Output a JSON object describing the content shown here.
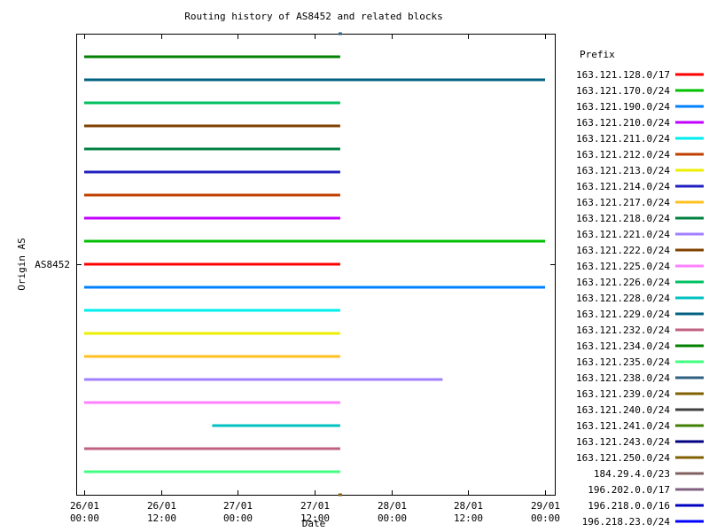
{
  "chart_data": {
    "type": "line",
    "title": "Routing history of AS8452 and related blocks",
    "xlabel": "Date",
    "ylabel": "Origin AS",
    "y_category": "AS8452",
    "legend_title": "Prefix",
    "legend_position": "right",
    "x_range": [
      "2011-01-26T00:00",
      "2011-01-29T00:00"
    ],
    "x_ticks": [
      {
        "at": "2011-01-26T00:00",
        "line1": "26/01",
        "line2": "00:00"
      },
      {
        "at": "2011-01-26T12:00",
        "line1": "26/01",
        "line2": "12:00"
      },
      {
        "at": "2011-01-27T00:00",
        "line1": "27/01",
        "line2": "00:00"
      },
      {
        "at": "2011-01-27T12:00",
        "line1": "27/01",
        "line2": "12:00"
      },
      {
        "at": "2011-01-28T00:00",
        "line1": "28/01",
        "line2": "00:00"
      },
      {
        "at": "2011-01-28T12:00",
        "line1": "28/01",
        "line2": "12:00"
      },
      {
        "at": "2011-01-29T00:00",
        "line1": "29/01",
        "line2": "00:00"
      }
    ],
    "grid": false,
    "series": [
      {
        "name": "163.121.128.0/17",
        "color": "#ff0000",
        "row": 0,
        "start": "2011-01-26T00:00",
        "end": "2011-01-27T16:00"
      },
      {
        "name": "163.121.170.0/24",
        "color": "#00c000",
        "row": 1,
        "start": "2011-01-26T00:00",
        "end": "2011-01-29T00:00"
      },
      {
        "name": "163.121.190.0/24",
        "color": "#0080ff",
        "row": -1,
        "start": "2011-01-26T00:00",
        "end": "2011-01-29T00:00"
      },
      {
        "name": "163.121.210.0/24",
        "color": "#c000ff",
        "row": 2,
        "start": "2011-01-26T00:00",
        "end": "2011-01-27T16:00"
      },
      {
        "name": "163.121.211.0/24",
        "color": "#00eeee",
        "row": -2,
        "start": "2011-01-26T00:00",
        "end": "2011-01-27T16:00"
      },
      {
        "name": "163.121.212.0/24",
        "color": "#c04000",
        "row": 3,
        "start": "2011-01-26T00:00",
        "end": "2011-01-27T16:00"
      },
      {
        "name": "163.121.213.0/24",
        "color": "#eeee00",
        "row": -3,
        "start": "2011-01-26T00:00",
        "end": "2011-01-27T16:00"
      },
      {
        "name": "163.121.214.0/24",
        "color": "#2020c0",
        "row": 4,
        "start": "2011-01-26T00:00",
        "end": "2011-01-27T16:00"
      },
      {
        "name": "163.121.217.0/24",
        "color": "#ffc020",
        "row": -4,
        "start": "2011-01-26T00:00",
        "end": "2011-01-27T16:00"
      },
      {
        "name": "163.121.218.0/24",
        "color": "#008040",
        "row": 5,
        "start": "2011-01-26T00:00",
        "end": "2011-01-27T16:00"
      },
      {
        "name": "163.121.221.0/24",
        "color": "#a080ff",
        "row": -5,
        "start": "2011-01-26T00:00",
        "end": "2011-01-28T08:00"
      },
      {
        "name": "163.121.222.0/24",
        "color": "#804000",
        "row": 6,
        "start": "2011-01-26T00:00",
        "end": "2011-01-27T16:00"
      },
      {
        "name": "163.121.225.0/24",
        "color": "#ff80ff",
        "row": -6,
        "start": "2011-01-26T00:00",
        "end": "2011-01-27T16:00"
      },
      {
        "name": "163.121.226.0/24",
        "color": "#00c060",
        "row": 7,
        "start": "2011-01-26T00:00",
        "end": "2011-01-27T16:00"
      },
      {
        "name": "163.121.228.0/24",
        "color": "#00c0c0",
        "row": -7,
        "start": "2011-01-26T20:00",
        "end": "2011-01-27T16:00"
      },
      {
        "name": "163.121.229.0/24",
        "color": "#006080",
        "row": 8,
        "start": "2011-01-26T00:00",
        "end": "2011-01-29T00:00"
      },
      {
        "name": "163.121.232.0/24",
        "color": "#c06080",
        "row": -8,
        "start": "2011-01-26T00:00",
        "end": "2011-01-27T16:00"
      },
      {
        "name": "163.121.234.0/24",
        "color": "#008000",
        "row": 9,
        "start": "2011-01-26T00:00",
        "end": "2011-01-27T16:00"
      },
      {
        "name": "163.121.235.0/24",
        "color": "#40ff80",
        "row": -9,
        "start": "2011-01-26T00:00",
        "end": "2011-01-27T16:00"
      },
      {
        "name": "163.121.238.0/24",
        "color": "#306080",
        "row": 10,
        "start": "2011-01-27T16:00",
        "end": "2011-01-27T16:00"
      },
      {
        "name": "163.121.239.0/24",
        "color": "#806000",
        "row": -10,
        "start": "2011-01-27T16:00",
        "end": "2011-01-27T16:00"
      },
      {
        "name": "163.121.240.0/24",
        "color": "#404040",
        "row": null,
        "start": null,
        "end": null
      },
      {
        "name": "163.121.241.0/24",
        "color": "#408000",
        "row": null,
        "start": null,
        "end": null
      },
      {
        "name": "163.121.243.0/24",
        "color": "#000080",
        "row": null,
        "start": null,
        "end": null
      },
      {
        "name": "163.121.250.0/24",
        "color": "#806000",
        "row": null,
        "start": null,
        "end": null
      },
      {
        "name": "184.29.4.0/23",
        "color": "#806060",
        "row": null,
        "start": null,
        "end": null
      },
      {
        "name": "196.202.0.0/17",
        "color": "#806080",
        "row": null,
        "start": null,
        "end": null
      },
      {
        "name": "196.218.0.0/16",
        "color": "#0000c0",
        "row": null,
        "start": null,
        "end": null
      },
      {
        "name": "196.218.23.0/24",
        "color": "#0000ff",
        "row": null,
        "start": null,
        "end": null
      }
    ]
  }
}
